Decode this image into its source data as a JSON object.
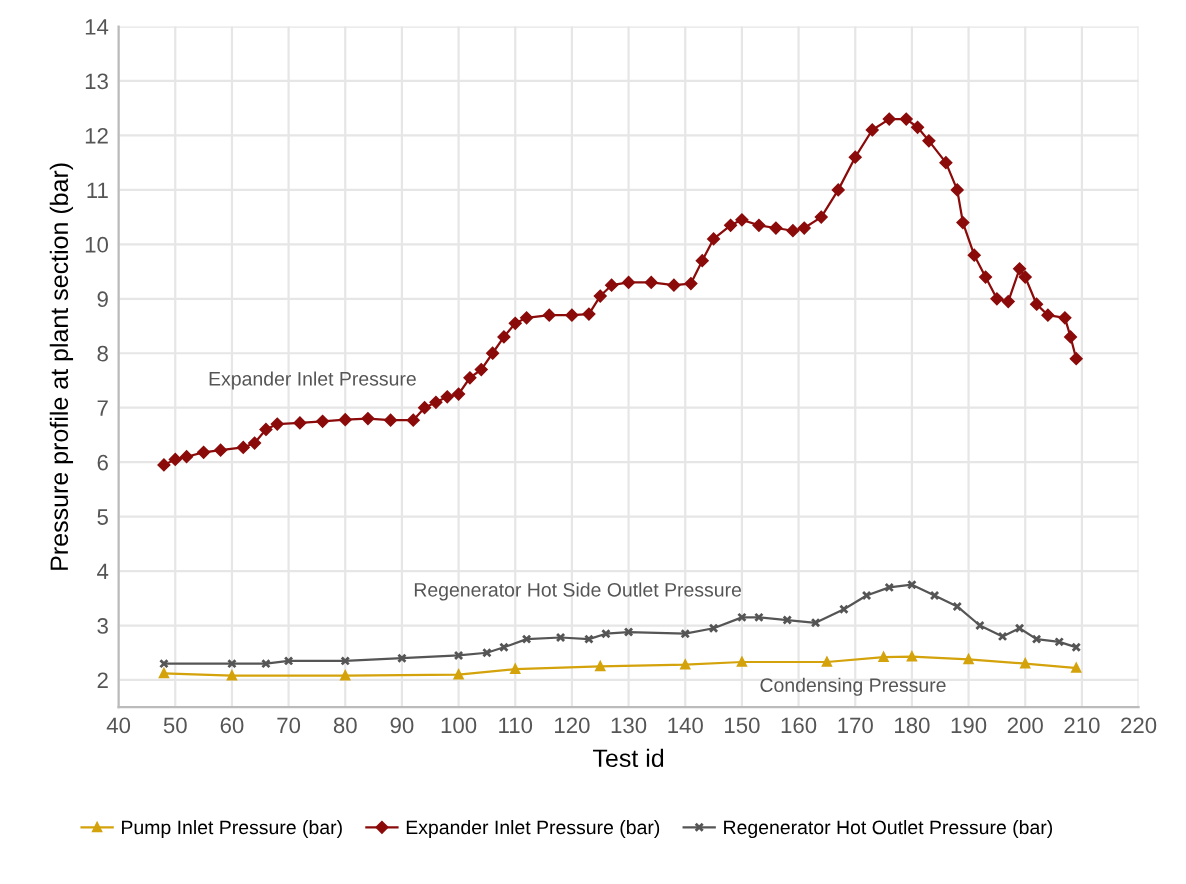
{
  "chart_data": {
    "type": "line",
    "xlabel": "Test id",
    "ylabel": "Pressure profile at plant section (bar)",
    "xlim": [
      40,
      220
    ],
    "xticks": [
      40,
      50,
      60,
      70,
      80,
      90,
      100,
      110,
      120,
      130,
      140,
      150,
      160,
      170,
      180,
      190,
      200,
      210,
      220
    ],
    "ylim": [
      1.5,
      14
    ],
    "yticks": [
      2,
      3,
      4,
      5,
      6,
      7,
      8,
      9,
      10,
      11,
      12,
      13,
      14
    ],
    "grid": true,
    "legend": "bottom",
    "annotations": [
      "Expander Inlet Pressure",
      "Regenerator Hot Side Outlet Pressure",
      "Condensing Pressure"
    ],
    "series": [
      {
        "name": "Pump Inlet Pressure (bar)",
        "color": "#d4a20a",
        "marker": "triangle",
        "x": [
          48,
          60,
          80,
          100,
          110,
          125,
          140,
          150,
          165,
          175,
          180,
          190,
          200,
          209
        ],
        "values": [
          2.12,
          2.08,
          2.08,
          2.1,
          2.2,
          2.25,
          2.28,
          2.33,
          2.33,
          2.42,
          2.43,
          2.38,
          2.3,
          2.22
        ]
      },
      {
        "name": "Expander Inlet Pressure (bar)",
        "color": "#8b0a0a",
        "marker": "diamond",
        "x": [
          48,
          50,
          52,
          55,
          58,
          62,
          64,
          66,
          68,
          72,
          76,
          80,
          84,
          88,
          92,
          94,
          96,
          98,
          100,
          102,
          104,
          106,
          108,
          110,
          112,
          116,
          120,
          123,
          125,
          127,
          130,
          134,
          138,
          141,
          143,
          145,
          148,
          150,
          153,
          156,
          159,
          161,
          164,
          167,
          170,
          173,
          176,
          179,
          181,
          183,
          186,
          188,
          189,
          191,
          193,
          195,
          197,
          199,
          200,
          202,
          204,
          207,
          208,
          209
        ],
        "values": [
          5.95,
          6.05,
          6.1,
          6.18,
          6.22,
          6.27,
          6.35,
          6.6,
          6.7,
          6.72,
          6.75,
          6.78,
          6.8,
          6.77,
          6.77,
          7.0,
          7.1,
          7.2,
          7.25,
          7.55,
          7.7,
          8.0,
          8.3,
          8.55,
          8.65,
          8.7,
          8.7,
          8.72,
          9.05,
          9.25,
          9.3,
          9.3,
          9.25,
          9.28,
          9.7,
          10.1,
          10.35,
          10.45,
          10.35,
          10.3,
          10.25,
          10.3,
          10.5,
          11.0,
          11.6,
          12.1,
          12.3,
          12.3,
          12.15,
          11.9,
          11.5,
          11.0,
          10.4,
          9.8,
          9.4,
          9.0,
          8.95,
          9.55,
          9.4,
          8.9,
          8.7,
          8.65,
          8.3,
          7.9
        ]
      },
      {
        "name": "Regenerator Hot Outlet Pressure (bar)",
        "color": "#555555",
        "marker": "cross",
        "x": [
          48,
          60,
          66,
          70,
          80,
          90,
          100,
          105,
          108,
          112,
          118,
          123,
          126,
          130,
          140,
          145,
          150,
          153,
          158,
          163,
          168,
          172,
          176,
          180,
          184,
          188,
          192,
          196,
          199,
          202,
          206,
          209
        ],
        "values": [
          2.3,
          2.3,
          2.3,
          2.35,
          2.35,
          2.4,
          2.45,
          2.5,
          2.6,
          2.75,
          2.78,
          2.75,
          2.85,
          2.88,
          2.85,
          2.95,
          3.15,
          3.15,
          3.1,
          3.05,
          3.3,
          3.55,
          3.7,
          3.75,
          3.55,
          3.35,
          3.0,
          2.8,
          2.95,
          2.75,
          2.7,
          2.6
        ]
      }
    ]
  }
}
